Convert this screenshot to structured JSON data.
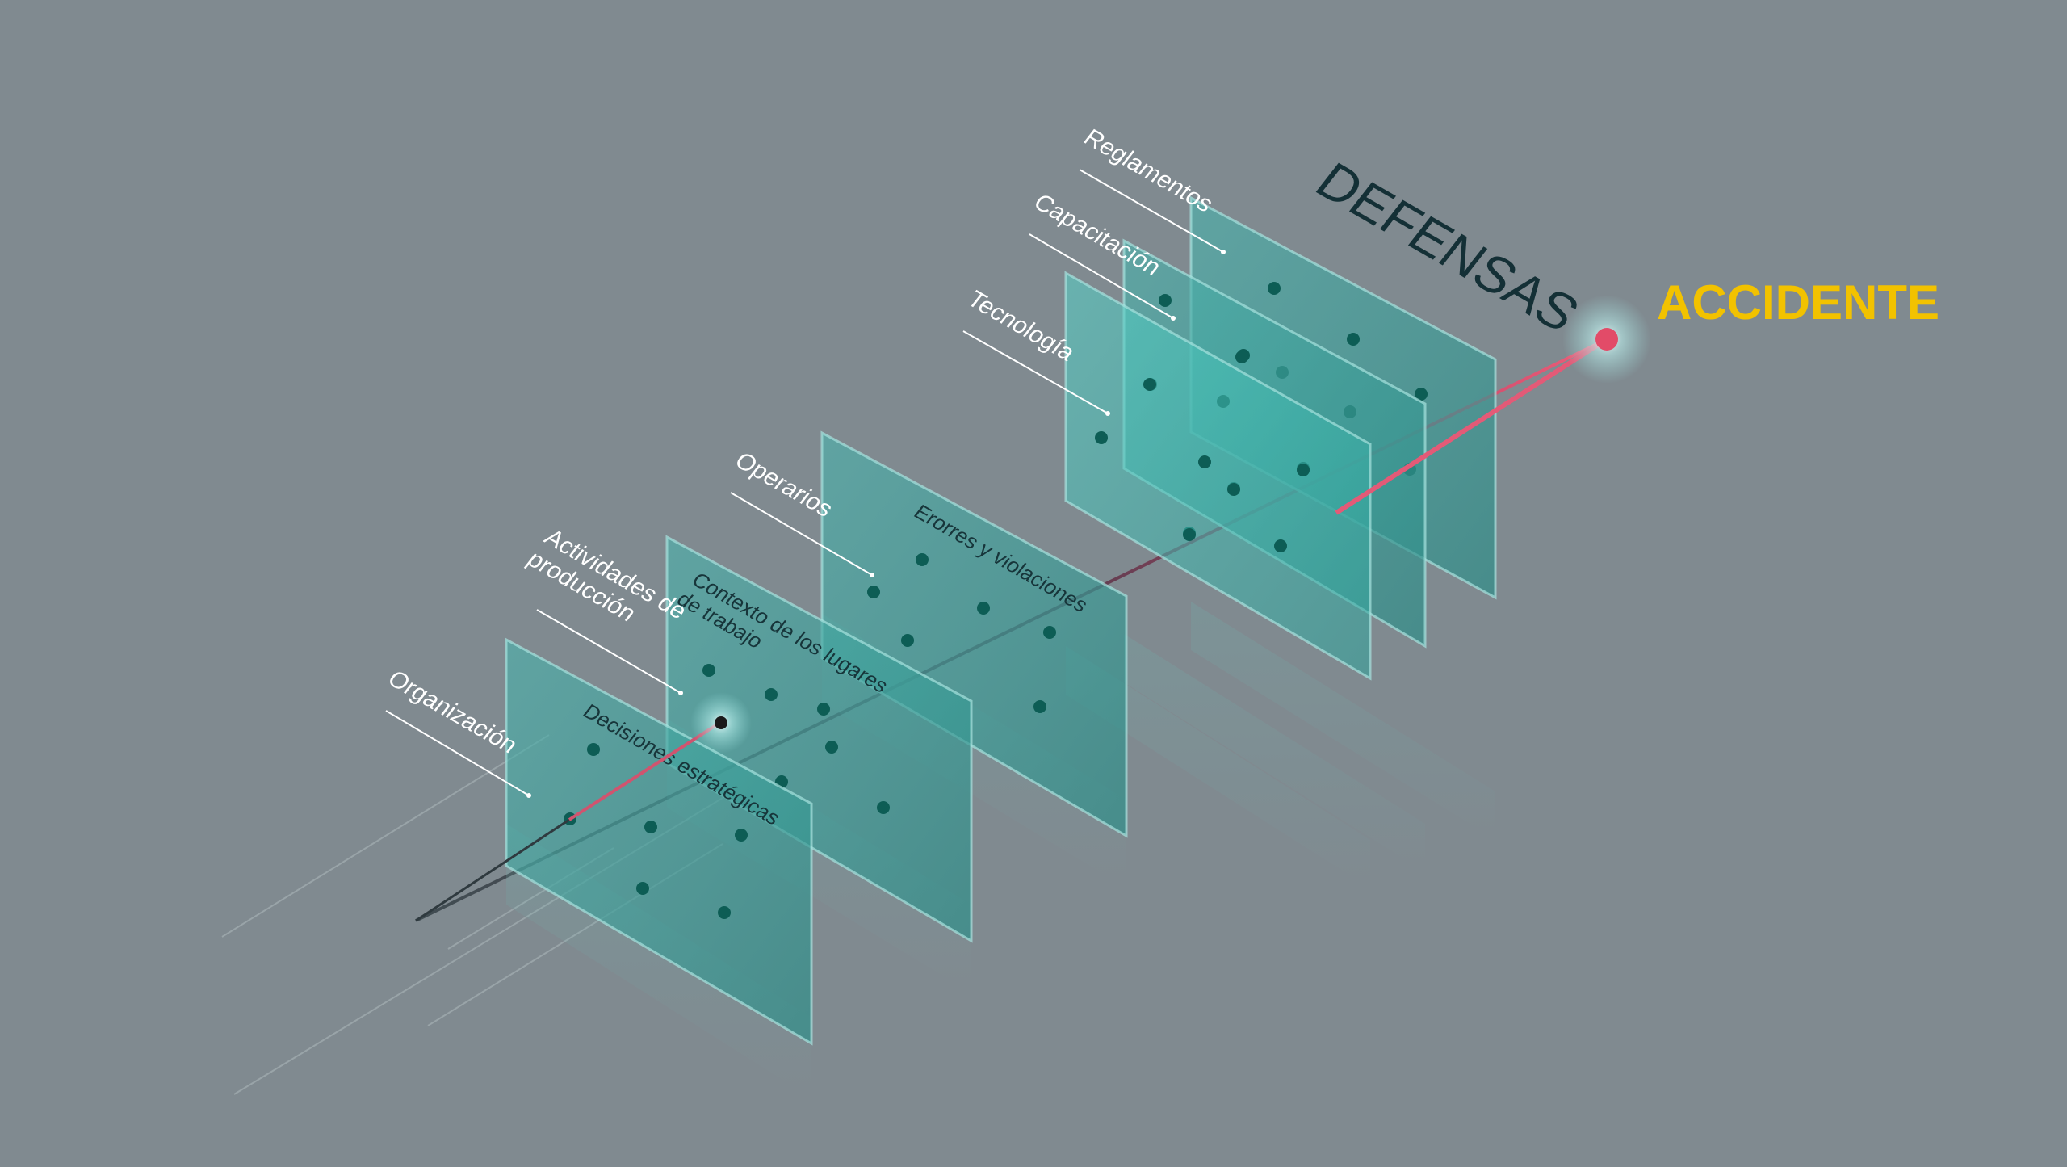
{
  "title": "DEFENSAS",
  "endpoint": "ACCIDENTE",
  "colors": {
    "background": "#808a90",
    "panel": "#3fa39d",
    "dot": "#0d5d55",
    "ray": "#e14b6a",
    "accent": "#f2c200",
    "title": "#143036",
    "label": "#ffffff"
  },
  "layers": [
    {
      "side_label": "Organización",
      "inner_label": "Decisiones estratégicas"
    },
    {
      "side_label": "Actividades de producción",
      "inner_label": "Contexto de los lugares de trabajo"
    },
    {
      "side_label": "Operarios",
      "inner_label": "Erorres y violaciones"
    },
    {
      "side_label": "Tecnología",
      "inner_label": ""
    },
    {
      "side_label": "Capacitación",
      "inner_label": ""
    },
    {
      "side_label": "Reglamentos",
      "inner_label": ""
    }
  ]
}
